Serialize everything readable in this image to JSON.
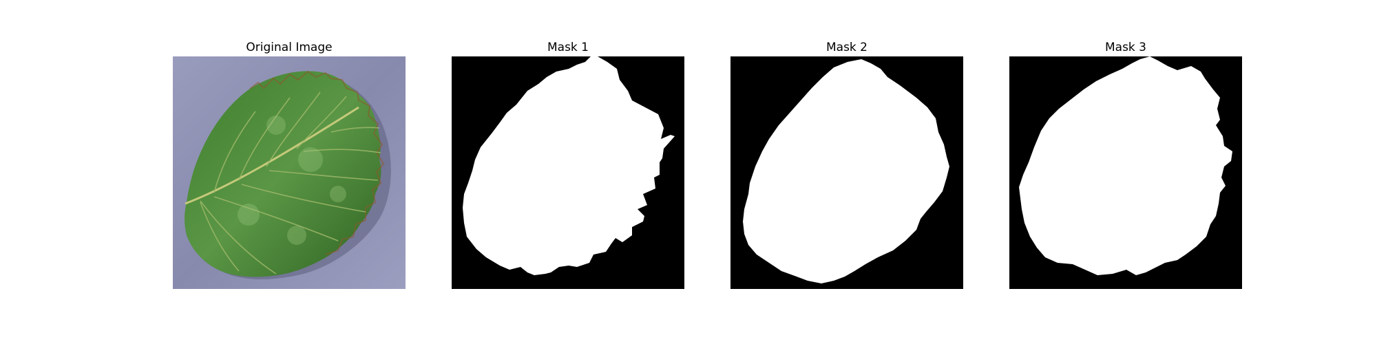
{
  "figure": {
    "panels": [
      {
        "title": "Original Image",
        "kind": "photo"
      },
      {
        "title": "Mask 1",
        "kind": "mask"
      },
      {
        "title": "Mask 2",
        "kind": "mask"
      },
      {
        "title": "Mask 3",
        "kind": "mask"
      }
    ]
  },
  "colors": {
    "background": "#ffffff",
    "mask_background": "#000000",
    "mask_foreground": "#ffffff",
    "leaf_dark": "#2f6a24",
    "leaf_mid": "#4e8c3a",
    "leaf_light": "#7fb063",
    "surface": "#8e90b4"
  }
}
